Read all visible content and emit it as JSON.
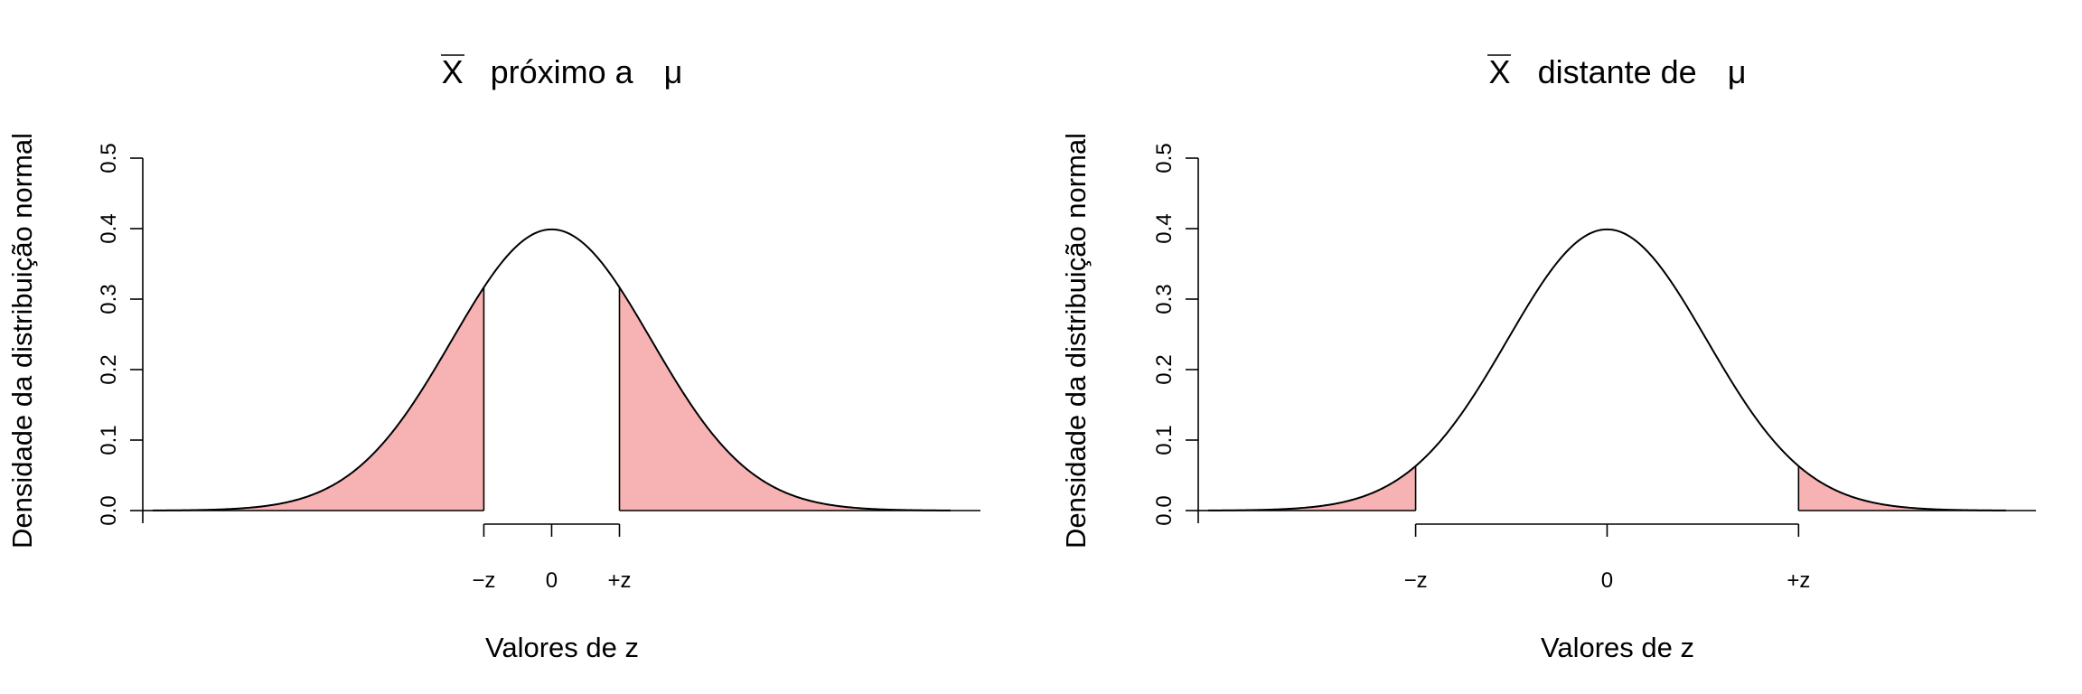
{
  "colors": {
    "shade": "#f7b3b3",
    "line": "#000000",
    "background": "#ffffff"
  },
  "chart_data": [
    {
      "type": "area",
      "title": {
        "xbar": "X",
        "text": "próximo a",
        "mu": "μ"
      },
      "xlabel": "Valores de z",
      "ylabel": "Densidade da distribuição normal",
      "xlim": [
        -4.1,
        4.3
      ],
      "ylim": [
        0,
        0.5
      ],
      "y_ticks": [
        "0.0",
        "0.1",
        "0.2",
        "0.3",
        "0.4",
        "0.5"
      ],
      "y_tick_values": [
        0,
        0.1,
        0.2,
        0.3,
        0.4,
        0.5
      ],
      "x_ticks": [
        "−z",
        "0",
        "+z"
      ],
      "x_tick_values": [
        -0.68,
        0,
        0.68
      ],
      "curve": "standard normal density",
      "curve_range": [
        -4,
        4
      ],
      "shaded_tails": {
        "lower": -0.68,
        "upper": 0.68
      }
    },
    {
      "type": "area",
      "title": {
        "xbar": "X",
        "text": "distante de",
        "mu": "μ"
      },
      "xlabel": "Valores de z",
      "ylabel": "Densidade da distribuição normal",
      "xlim": [
        -4.1,
        4.3
      ],
      "ylim": [
        0,
        0.5
      ],
      "y_ticks": [
        "0.0",
        "0.1",
        "0.2",
        "0.3",
        "0.4",
        "0.5"
      ],
      "y_tick_values": [
        0,
        0.1,
        0.2,
        0.3,
        0.4,
        0.5
      ],
      "x_ticks": [
        "−z",
        "0",
        "+z"
      ],
      "x_tick_values": [
        -1.92,
        0,
        1.92
      ],
      "curve": "standard normal density",
      "curve_range": [
        -4,
        4
      ],
      "shaded_tails": {
        "lower": -1.92,
        "upper": 1.92
      }
    }
  ]
}
